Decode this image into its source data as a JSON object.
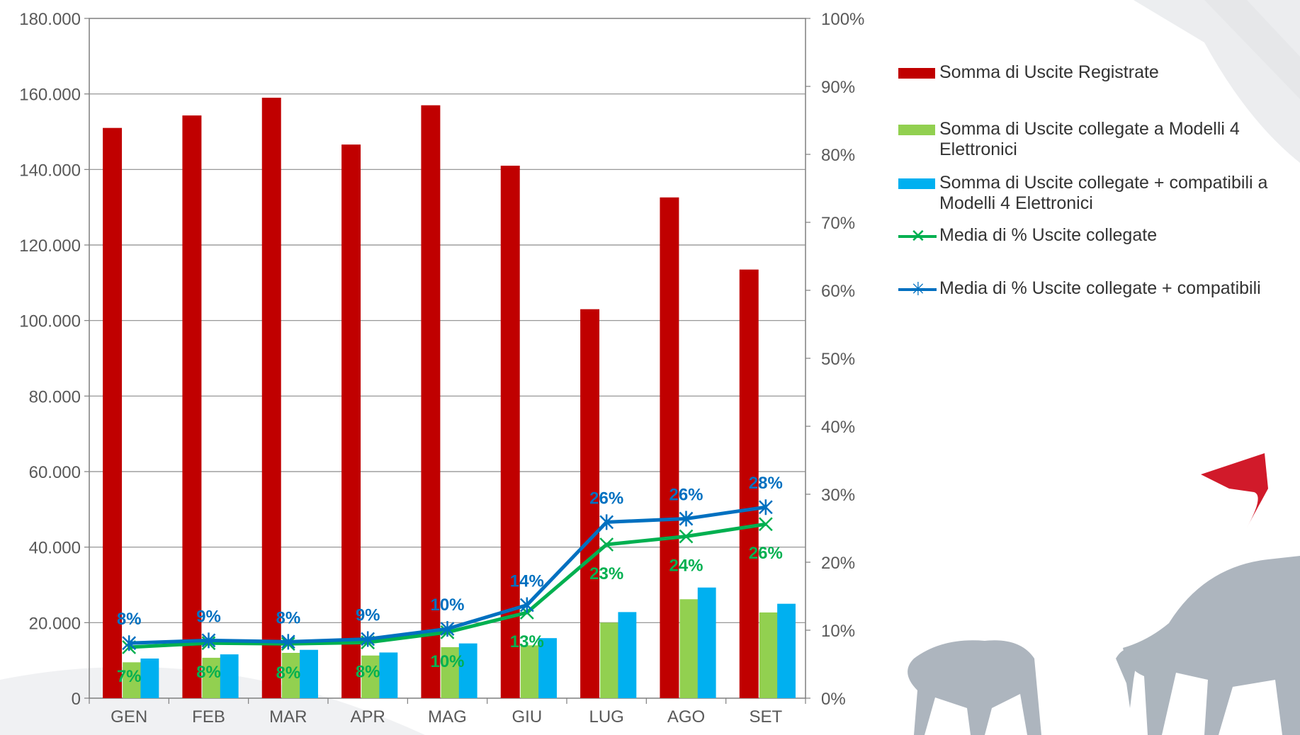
{
  "chart_data": {
    "type": "bar",
    "categories": [
      "GEN",
      "FEB",
      "MAR",
      "APR",
      "MAG",
      "GIU",
      "LUG",
      "AGO",
      "SET"
    ],
    "y_left": {
      "ticks": [
        "0",
        "20.000",
        "40.000",
        "60.000",
        "80.000",
        "100.000",
        "120.000",
        "140.000",
        "160.000",
        "180.000"
      ],
      "range": [
        0,
        180000
      ]
    },
    "y_right": {
      "ticks": [
        "0%",
        "10%",
        "20%",
        "30%",
        "40%",
        "50%",
        "60%",
        "70%",
        "80%",
        "90%",
        "100%"
      ],
      "range": [
        0,
        1
      ]
    },
    "grid": true,
    "legend_position": "right",
    "bar_series": [
      {
        "name": "Somma di Uscite Registrate",
        "color": "#C00000",
        "values": [
          151000,
          154300,
          159000,
          146600,
          157000,
          141000,
          103000,
          132600,
          113500
        ]
      },
      {
        "name": "Somma di Uscite collegate a Modelli 4 Elettronici",
        "color": "#92D050",
        "values": [
          9500,
          10700,
          12000,
          11300,
          13500,
          14000,
          20000,
          26200,
          22700
        ]
      },
      {
        "name": "Somma di Uscite collegate + compatibili a Modelli 4 Elettronici",
        "color": "#00B0F0",
        "values": [
          10500,
          11600,
          12800,
          12100,
          14500,
          15900,
          22800,
          29300,
          25000
        ]
      }
    ],
    "line_series": [
      {
        "name": "Media di % Uscite collegate",
        "color": "#00B050",
        "marker": "x",
        "values": [
          0.075,
          0.081,
          0.08,
          0.082,
          0.097,
          0.126,
          0.226,
          0.238,
          0.256
        ],
        "labels": [
          "7%",
          "8%",
          "8%",
          "8%",
          "10%",
          "13%",
          "23%",
          "24%",
          "26%"
        ]
      },
      {
        "name": "Media di % Uscite collegate + compatibili",
        "color": "#0070C0",
        "marker": "star",
        "values": [
          0.081,
          0.085,
          0.083,
          0.087,
          0.102,
          0.137,
          0.259,
          0.264,
          0.281
        ],
        "labels": [
          "8%",
          "9%",
          "8%",
          "9%",
          "10%",
          "14%",
          "26%",
          "26%",
          "28%"
        ]
      }
    ]
  }
}
